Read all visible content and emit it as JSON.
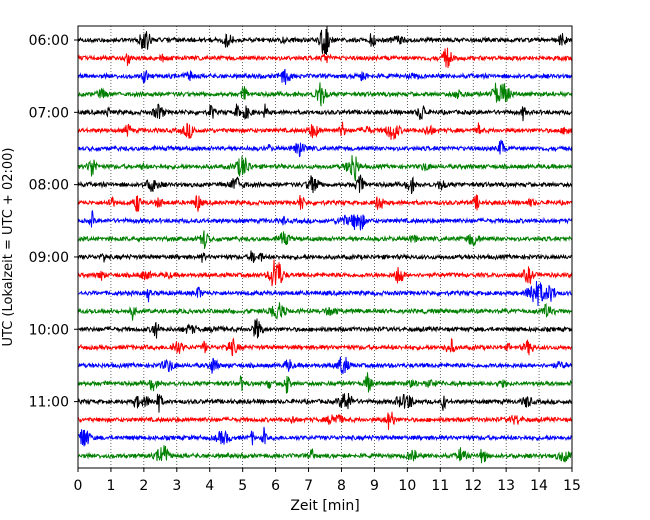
{
  "chart_data": {
    "type": "line",
    "xlabel": "Zeit  [min]",
    "ylabel": "UTC (Lokalzeit = UTC + 02:00)",
    "xlim": [
      0,
      15
    ],
    "x_ticks": [
      "0",
      "1",
      "2",
      "3",
      "4",
      "5",
      "6",
      "7",
      "8",
      "9",
      "10",
      "11",
      "12",
      "13",
      "14",
      "15"
    ],
    "y_ticks": [
      "06:00",
      "07:00",
      "08:00",
      "09:00",
      "10:00",
      "11:00"
    ],
    "trace_start_time": "06:00",
    "trace_interval_min": 15,
    "trace_count": 24,
    "vertical_grid": true,
    "grid_style": "dotted",
    "trace_colors": [
      "#000000",
      "#ff0000",
      "#0000ff",
      "#008000"
    ]
  }
}
